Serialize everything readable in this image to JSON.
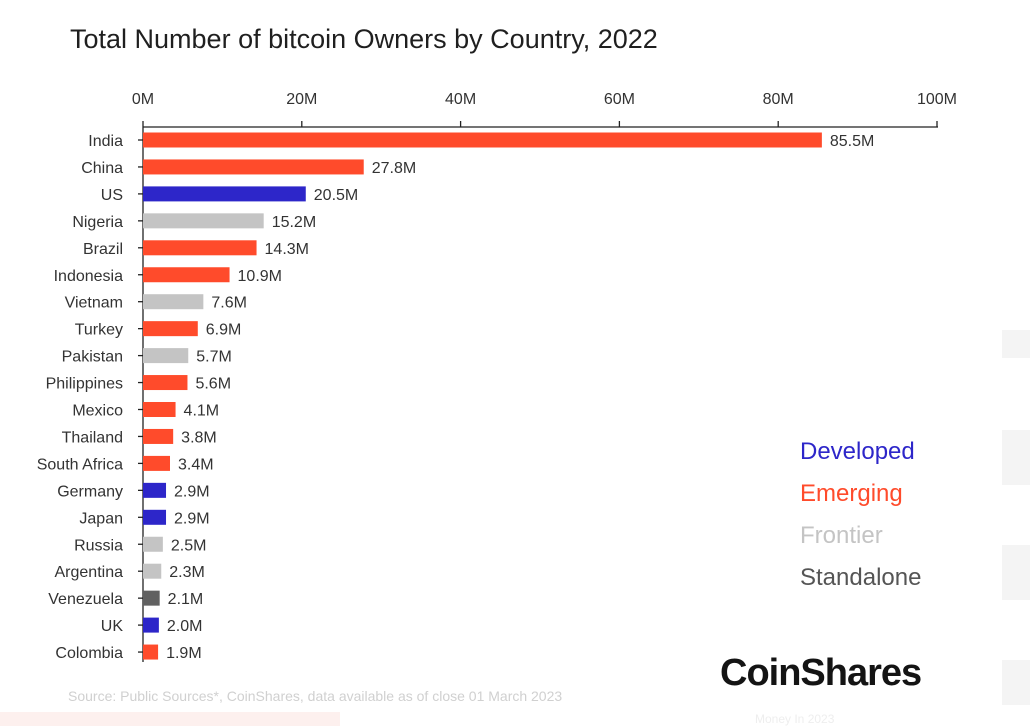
{
  "chart_data": {
    "type": "bar",
    "orientation": "horizontal",
    "title": "Total Number of bitcoin Owners by Country, 2022",
    "xlabel": "",
    "ylabel": "",
    "xlim": [
      0,
      100
    ],
    "x_ticks": [
      "0M",
      "20M",
      "40M",
      "60M",
      "80M",
      "100M"
    ],
    "x_tick_values": [
      0,
      20,
      40,
      60,
      80,
      100
    ],
    "axis_position": "top",
    "grid": false,
    "legend_position": "right",
    "categories": [
      "India",
      "China",
      "US",
      "Nigeria",
      "Brazil",
      "Indonesia",
      "Vietnam",
      "Turkey",
      "Pakistan",
      "Philippines",
      "Mexico",
      "Thailand",
      "South Africa",
      "Germany",
      "Japan",
      "Russia",
      "Argentina",
      "Venezuela",
      "UK",
      "Colombia"
    ],
    "values": [
      85.5,
      27.8,
      20.5,
      15.2,
      14.3,
      10.9,
      7.6,
      6.9,
      5.7,
      5.6,
      4.1,
      3.8,
      3.4,
      2.9,
      2.9,
      2.5,
      2.3,
      2.1,
      2.0,
      1.9
    ],
    "value_labels": [
      "85.5M",
      "27.8M",
      "20.5M",
      "15.2M",
      "14.3M",
      "10.9M",
      "7.6M",
      "6.9M",
      "5.7M",
      "5.6M",
      "4.1M",
      "3.8M",
      "3.4M",
      "2.9M",
      "2.9M",
      "2.5M",
      "2.3M",
      "2.1M",
      "2.0M",
      "1.9M"
    ],
    "groups": [
      "Emerging",
      "Emerging",
      "Developed",
      "Frontier",
      "Emerging",
      "Emerging",
      "Frontier",
      "Emerging",
      "Frontier",
      "Emerging",
      "Emerging",
      "Emerging",
      "Emerging",
      "Developed",
      "Developed",
      "Frontier",
      "Frontier",
      "Standalone",
      "Developed",
      "Emerging"
    ],
    "units": "millions of owners"
  },
  "legend": {
    "items": [
      {
        "label": "Developed",
        "color": "#2d26c9"
      },
      {
        "label": "Emerging",
        "color": "#ff4b2b"
      },
      {
        "label": "Frontier",
        "color": "#c4c4c4"
      },
      {
        "label": "Standalone",
        "color": "#555555"
      }
    ]
  },
  "colors": {
    "Developed": "#2d26c9",
    "Emerging": "#ff4b2b",
    "Frontier": "#c4c4c4",
    "Standalone": "#616161",
    "axis": "#222222"
  },
  "footer": {
    "source": "Source: Public Sources*, CoinShares, data available as of close 01 March 2023",
    "brand": "CoinShares",
    "faded_caption": "Money In 2023"
  }
}
